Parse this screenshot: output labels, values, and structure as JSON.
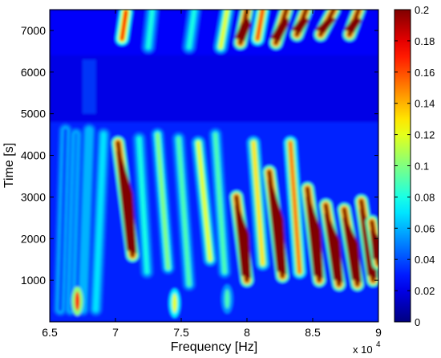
{
  "chart_data": {
    "type": "heatmap",
    "title": "",
    "xlabel": "Frequency [Hz]",
    "ylabel": "Time [s]",
    "x_multiplier_label": "x 10",
    "x_multiplier_exponent": "4",
    "xlim": [
      6.5,
      9.0
    ],
    "ylim": [
      0,
      7500
    ],
    "x_ticks": [
      6.5,
      7,
      7.5,
      8,
      8.5,
      9
    ],
    "x_tick_labels": [
      "6.5",
      "7",
      "7.5",
      "8",
      "8.5",
      "9"
    ],
    "y_ticks": [
      1000,
      2000,
      3000,
      4000,
      5000,
      6000,
      7000
    ],
    "y_tick_labels": [
      "1000",
      "2000",
      "3000",
      "4000",
      "5000",
      "6000",
      "7000"
    ],
    "colorbar": {
      "colormap": "jet",
      "range": [
        0,
        0.2
      ],
      "ticks": [
        0,
        0.02,
        0.04,
        0.06,
        0.08,
        0.1,
        0.12,
        0.14,
        0.16,
        0.18,
        0.2
      ],
      "tick_labels": [
        "0",
        "0.02",
        "0.04",
        "0.06",
        "0.08",
        "0.1",
        "0.12",
        "0.14",
        "0.16",
        "0.18",
        "0.2"
      ]
    },
    "quiet_band_time": [
      4800,
      6400
    ],
    "ridges": [
      {
        "f_top": 6.62,
        "f_bottom": 6.58,
        "t_top": 4600,
        "t_bottom": 300,
        "amp": 0.04
      },
      {
        "f_top": 6.7,
        "f_bottom": 6.66,
        "t_top": 4500,
        "t_bottom": 300,
        "amp": 0.05
      },
      {
        "f_top": 6.8,
        "f_bottom": 6.75,
        "t_top": 4600,
        "t_bottom": 300,
        "amp": 0.06
      },
      {
        "f_top": 6.91,
        "f_bottom": 6.85,
        "t_top": 4500,
        "t_bottom": 300,
        "amp": 0.07
      },
      {
        "f_top": 7.02,
        "f_bottom": 7.13,
        "t_top": 4300,
        "t_bottom": 1600,
        "amp": 0.2
      },
      {
        "f_top": 7.18,
        "f_bottom": 7.24,
        "t_top": 4400,
        "t_bottom": 1200,
        "amp": 0.08
      },
      {
        "f_top": 7.32,
        "f_bottom": 7.4,
        "t_top": 4500,
        "t_bottom": 1300,
        "amp": 0.1
      },
      {
        "f_top": 7.48,
        "f_bottom": 7.56,
        "t_top": 4400,
        "t_bottom": 900,
        "amp": 0.09
      },
      {
        "f_top": 7.63,
        "f_bottom": 7.72,
        "t_top": 4300,
        "t_bottom": 1500,
        "amp": 0.12
      },
      {
        "f_top": 7.76,
        "f_bottom": 7.83,
        "t_top": 4500,
        "t_bottom": 1200,
        "amp": 0.09
      },
      {
        "f_top": 7.92,
        "f_bottom": 8.0,
        "t_top": 3000,
        "t_bottom": 1000,
        "amp": 0.2
      },
      {
        "f_top": 8.05,
        "f_bottom": 8.12,
        "t_top": 4300,
        "t_bottom": 1400,
        "amp": 0.13
      },
      {
        "f_top": 8.17,
        "f_bottom": 8.27,
        "t_top": 3600,
        "t_bottom": 1100,
        "amp": 0.2
      },
      {
        "f_top": 8.33,
        "f_bottom": 8.4,
        "t_top": 4300,
        "t_bottom": 1200,
        "amp": 0.15
      },
      {
        "f_top": 8.46,
        "f_bottom": 8.55,
        "t_top": 3200,
        "t_bottom": 1000,
        "amp": 0.2
      },
      {
        "f_top": 8.6,
        "f_bottom": 8.7,
        "t_top": 2800,
        "t_bottom": 900,
        "amp": 0.2
      },
      {
        "f_top": 8.74,
        "f_bottom": 8.84,
        "t_top": 2700,
        "t_bottom": 900,
        "amp": 0.2
      },
      {
        "f_top": 8.87,
        "f_bottom": 8.96,
        "t_top": 2900,
        "t_bottom": 1000,
        "amp": 0.2
      },
      {
        "f_top": 8.95,
        "f_bottom": 9.0,
        "t_top": 2400,
        "t_bottom": 1400,
        "amp": 0.2
      }
    ],
    "top_streaks": [
      {
        "f_top": 7.08,
        "f_bottom": 7.05,
        "t_top": 7450,
        "t_bottom": 6800,
        "amp": 0.17
      },
      {
        "f_top": 7.28,
        "f_bottom": 7.25,
        "t_top": 7500,
        "t_bottom": 6600,
        "amp": 0.08
      },
      {
        "f_top": 7.6,
        "f_bottom": 7.56,
        "t_top": 7500,
        "t_bottom": 6600,
        "amp": 0.08
      },
      {
        "f_top": 7.85,
        "f_bottom": 7.8,
        "t_top": 7500,
        "t_bottom": 6600,
        "amp": 0.12
      },
      {
        "f_top": 8.0,
        "f_bottom": 7.95,
        "t_top": 7500,
        "t_bottom": 6700,
        "amp": 0.2
      },
      {
        "f_top": 8.12,
        "f_bottom": 8.08,
        "t_top": 7500,
        "t_bottom": 6800,
        "amp": 0.16
      },
      {
        "f_top": 8.3,
        "f_bottom": 8.22,
        "t_top": 7500,
        "t_bottom": 6700,
        "amp": 0.2
      },
      {
        "f_top": 8.45,
        "f_bottom": 8.38,
        "t_top": 7500,
        "t_bottom": 6900,
        "amp": 0.2
      },
      {
        "f_top": 8.66,
        "f_bottom": 8.56,
        "t_top": 7500,
        "t_bottom": 6900,
        "amp": 0.2
      },
      {
        "f_top": 8.85,
        "f_bottom": 8.78,
        "t_top": 7500,
        "t_bottom": 6900,
        "amp": 0.2
      }
    ],
    "bottom_blobs": [
      {
        "f": 6.71,
        "t": 500,
        "amp": 0.17
      },
      {
        "f": 7.45,
        "t": 450,
        "amp": 0.12
      },
      {
        "f": 7.85,
        "t": 550,
        "amp": 0.09
      }
    ]
  }
}
